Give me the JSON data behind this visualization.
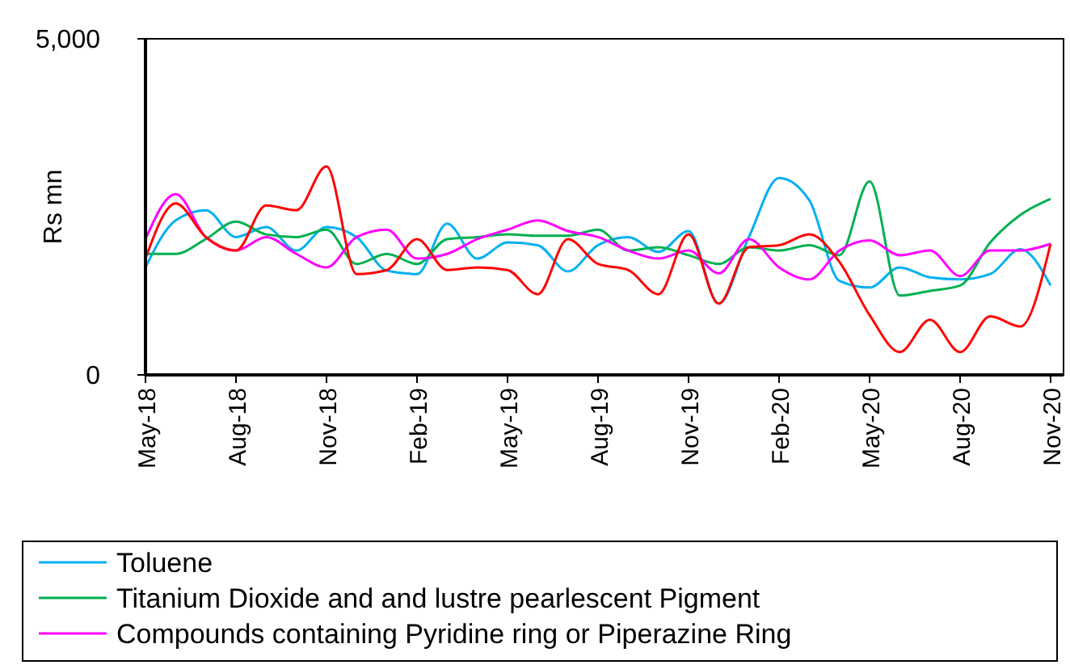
{
  "chart_data": {
    "type": "line",
    "ylabel": "Rs mn",
    "categories": [
      "May-18",
      null,
      null,
      "Aug-18",
      null,
      null,
      "Nov-18",
      null,
      null,
      "Feb-19",
      null,
      null,
      "May-19",
      null,
      null,
      "Aug-19",
      null,
      null,
      "Nov-19",
      null,
      null,
      "Feb-20",
      null,
      null,
      "May-20",
      null,
      null,
      "Aug-20",
      null,
      null,
      "Nov-20"
    ],
    "ylim": [
      0,
      5000
    ],
    "yticks": [
      0,
      {
        "value": 5000,
        "label": "5,000"
      }
    ],
    "legend": "bottom",
    "marker": "none",
    "line_style": "solid",
    "series": [
      {
        "name": "Toluene",
        "color": "#00b0f0",
        "values": [
          1600,
          2300,
          2450,
          2050,
          2200,
          1850,
          2200,
          2050,
          1550,
          1500,
          2250,
          1730,
          1970,
          1930,
          1540,
          1930,
          2050,
          1830,
          2140,
          1060,
          2050,
          2930,
          2600,
          1400,
          1300,
          1600,
          1450,
          1420,
          1500,
          1870,
          1330
        ]
      },
      {
        "name": "Titanium Dioxide and and lustre pearlescent Pigment",
        "color": "#00b050",
        "values": [
          1800,
          1800,
          2020,
          2280,
          2090,
          2050,
          2160,
          1650,
          1800,
          1650,
          2020,
          2050,
          2090,
          2070,
          2070,
          2160,
          1850,
          1900,
          1780,
          1650,
          1900,
          1850,
          1930,
          1780,
          2880,
          1180,
          1250,
          1330,
          1970,
          2380,
          2620
        ]
      },
      {
        "name": "Compounds containing Pyridine ring or Piperazine Ring",
        "color": "#ff00ff",
        "values": [
          2020,
          2690,
          2050,
          1850,
          2050,
          1800,
          1600,
          2050,
          2160,
          1730,
          1800,
          2020,
          2160,
          2300,
          2140,
          2050,
          1850,
          1730,
          1850,
          1510,
          2020,
          1600,
          1420,
          1850,
          2000,
          1780,
          1850,
          1470,
          1850,
          1850,
          1950
        ]
      },
      {
        "color": "#ff0000",
        "values": [
          1730,
          2550,
          2050,
          1850,
          2520,
          2450,
          3100,
          1500,
          1560,
          2020,
          1560,
          1600,
          1560,
          1200,
          2020,
          1650,
          1560,
          1200,
          2090,
          1060,
          1900,
          1930,
          2090,
          1680,
          890,
          340,
          820,
          340,
          870,
          720,
          1950
        ]
      }
    ]
  }
}
